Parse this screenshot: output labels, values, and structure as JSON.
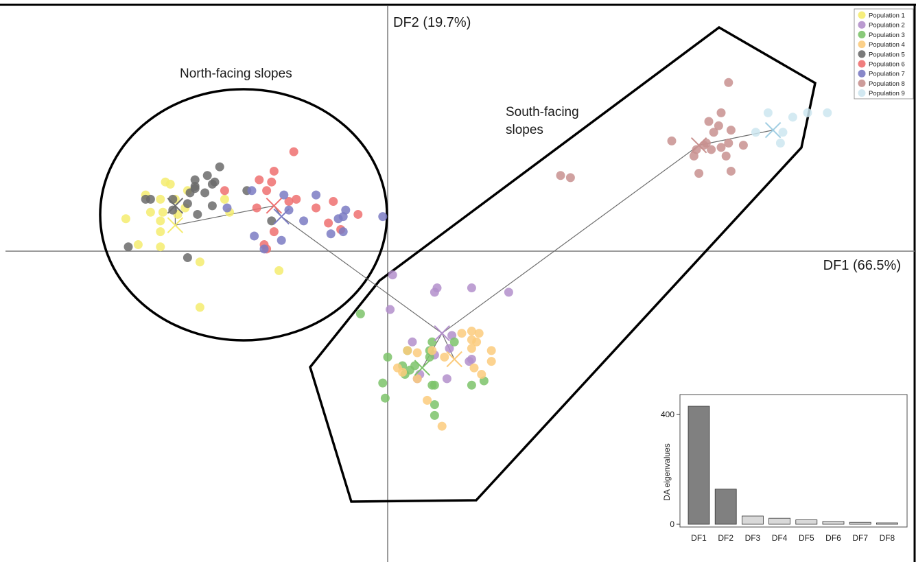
{
  "chart_data": [
    {
      "type": "scatter",
      "title": "",
      "xlabel": "DF1 (66.5%)",
      "ylabel": "DF2 (19.7%)",
      "xlim": [
        -7.5,
        10.5
      ],
      "ylim": [
        -5.6,
        4.7
      ],
      "grid": false,
      "legend_position": "top-right",
      "annotations": [
        "North-facing slopes",
        "South-facing slopes"
      ],
      "series": [
        {
          "name": "Population 1",
          "color": "#f5ec6e",
          "points": [
            [
              -4.5,
              1.6
            ],
            [
              -4.9,
              1.3
            ],
            [
              -4.6,
              1.2
            ],
            [
              -4.3,
              1.2
            ],
            [
              -4.1,
              1.0
            ],
            [
              -4.55,
              0.9
            ],
            [
              -4.25,
              0.85
            ],
            [
              -4.6,
              0.7
            ],
            [
              -5.3,
              0.75
            ],
            [
              -4.6,
              0.45
            ],
            [
              -4.05,
              1.4
            ],
            [
              -3.3,
              1.2
            ],
            [
              -3.2,
              0.9
            ],
            [
              -5.05,
              0.15
            ],
            [
              -4.6,
              0.1
            ],
            [
              -3.8,
              -0.25
            ],
            [
              -2.2,
              -0.45
            ],
            [
              -3.8,
              -1.3
            ],
            [
              -4.4,
              1.55
            ],
            [
              -4.8,
              0.9
            ]
          ],
          "centroid": [
            -4.3,
            0.6
          ]
        },
        {
          "name": "Population 2",
          "color": "#b38fcb",
          "points": [
            [
              0.1,
              -0.55
            ],
            [
              1.0,
              -0.85
            ],
            [
              0.95,
              -0.95
            ],
            [
              1.7,
              -0.85
            ],
            [
              2.45,
              -0.95
            ],
            [
              0.05,
              -1.35
            ],
            [
              0.5,
              -2.1
            ],
            [
              1.3,
              -1.95
            ],
            [
              1.25,
              -2.25
            ],
            [
              0.95,
              -2.4
            ],
            [
              1.7,
              -2.5
            ],
            [
              1.65,
              -2.55
            ],
            [
              0.65,
              -2.85
            ],
            [
              1.2,
              -2.95
            ],
            [
              0.6,
              -2.95
            ]
          ],
          "centroid": [
            1.1,
            -1.9
          ]
        },
        {
          "name": "Population 3",
          "color": "#7cc36a",
          "points": [
            [
              -0.55,
              -1.45
            ],
            [
              0.9,
              -2.1
            ],
            [
              1.35,
              -2.1
            ],
            [
              0.4,
              -2.3
            ],
            [
              0.85,
              -2.3
            ],
            [
              0.0,
              -2.45
            ],
            [
              0.85,
              -2.45
            ],
            [
              0.55,
              -2.65
            ],
            [
              0.3,
              -2.65
            ],
            [
              0.45,
              -2.75
            ],
            [
              0.35,
              -2.85
            ],
            [
              0.9,
              -3.1
            ],
            [
              1.7,
              -3.1
            ],
            [
              1.95,
              -3.0
            ],
            [
              -0.05,
              -3.4
            ],
            [
              0.95,
              -3.1
            ],
            [
              -0.1,
              -3.05
            ],
            [
              0.95,
              -3.55
            ],
            [
              0.95,
              -3.8
            ]
          ],
          "centroid": [
            0.7,
            -2.7
          ]
        },
        {
          "name": "Population 4",
          "color": "#fbcb7c",
          "points": [
            [
              1.5,
              -1.9
            ],
            [
              1.7,
              -1.85
            ],
            [
              1.85,
              -1.9
            ],
            [
              1.7,
              -2.05
            ],
            [
              1.8,
              -2.1
            ],
            [
              1.7,
              -2.25
            ],
            [
              0.4,
              -2.3
            ],
            [
              0.6,
              -2.35
            ],
            [
              0.9,
              -2.3
            ],
            [
              1.15,
              -2.45
            ],
            [
              2.1,
              -2.3
            ],
            [
              2.1,
              -2.55
            ],
            [
              1.75,
              -2.7
            ],
            [
              0.2,
              -2.7
            ],
            [
              0.3,
              -2.8
            ],
            [
              1.9,
              -2.85
            ],
            [
              0.6,
              -2.95
            ],
            [
              0.8,
              -3.45
            ],
            [
              1.1,
              -4.05
            ]
          ],
          "centroid": [
            1.35,
            -2.5
          ]
        },
        {
          "name": "Population 5",
          "color": "#6b6b6b",
          "points": [
            [
              -3.4,
              1.95
            ],
            [
              -3.65,
              1.75
            ],
            [
              -3.5,
              1.6
            ],
            [
              -3.9,
              1.5
            ],
            [
              -4.0,
              1.35
            ],
            [
              -3.7,
              1.35
            ],
            [
              -3.9,
              1.45
            ],
            [
              -3.55,
              1.55
            ],
            [
              -2.85,
              1.4
            ],
            [
              -4.35,
              1.2
            ],
            [
              -4.05,
              1.1
            ],
            [
              -4.8,
              1.2
            ],
            [
              -4.9,
              1.2
            ],
            [
              -4.35,
              0.95
            ],
            [
              -3.55,
              1.05
            ],
            [
              -3.85,
              0.85
            ],
            [
              -2.35,
              0.7
            ],
            [
              -5.25,
              0.1
            ],
            [
              -4.05,
              -0.15
            ],
            [
              -3.9,
              1.65
            ]
          ],
          "centroid": [
            -4.3,
            1.05
          ]
        },
        {
          "name": "Population 6",
          "color": "#ee7070",
          "points": [
            [
              -1.9,
              2.3
            ],
            [
              -2.3,
              1.85
            ],
            [
              -2.6,
              1.65
            ],
            [
              -2.35,
              1.6
            ],
            [
              -2.45,
              1.4
            ],
            [
              -3.3,
              1.4
            ],
            [
              -2.0,
              1.15
            ],
            [
              -1.1,
              1.15
            ],
            [
              -1.85,
              1.2
            ],
            [
              -2.65,
              1.0
            ],
            [
              -1.45,
              1.0
            ],
            [
              -1.2,
              0.65
            ],
            [
              -0.6,
              0.85
            ],
            [
              -0.95,
              0.5
            ],
            [
              -2.3,
              0.45
            ],
            [
              -2.5,
              0.15
            ],
            [
              -2.45,
              0.05
            ]
          ],
          "centroid": [
            -2.3,
            1.05
          ]
        },
        {
          "name": "Population 7",
          "color": "#7b7bc3",
          "points": [
            [
              -2.75,
              1.4
            ],
            [
              -1.45,
              1.3
            ],
            [
              -2.1,
              1.3
            ],
            [
              -3.25,
              1.0
            ],
            [
              -2.0,
              0.95
            ],
            [
              -0.85,
              0.95
            ],
            [
              -1.0,
              0.75
            ],
            [
              -0.9,
              0.8
            ],
            [
              -0.1,
              0.8
            ],
            [
              -1.7,
              0.7
            ],
            [
              -2.7,
              0.35
            ],
            [
              -1.15,
              0.4
            ],
            [
              -0.9,
              0.45
            ],
            [
              -2.15,
              0.25
            ],
            [
              -2.5,
              0.05
            ]
          ],
          "centroid": [
            -2.15,
            0.8
          ]
        },
        {
          "name": "Population 8",
          "color": "#c8918f",
          "points": [
            [
              6.9,
              3.9
            ],
            [
              6.75,
              3.2
            ],
            [
              6.5,
              3.0
            ],
            [
              6.7,
              2.9
            ],
            [
              6.6,
              2.75
            ],
            [
              6.95,
              2.8
            ],
            [
              5.75,
              2.55
            ],
            [
              6.45,
              2.5
            ],
            [
              6.9,
              2.5
            ],
            [
              6.25,
              2.35
            ],
            [
              6.75,
              2.4
            ],
            [
              6.55,
              2.35
            ],
            [
              7.2,
              2.45
            ],
            [
              6.2,
              2.2
            ],
            [
              6.85,
              2.2
            ],
            [
              6.3,
              1.8
            ],
            [
              6.95,
              1.85
            ],
            [
              3.5,
              1.75
            ],
            [
              3.7,
              1.7
            ],
            [
              6.4,
              2.45
            ]
          ],
          "centroid": [
            6.3,
            2.45
          ]
        },
        {
          "name": "Population 9",
          "color": "#cde6f0",
          "points": [
            [
              7.7,
              3.2
            ],
            [
              8.2,
              3.1
            ],
            [
              8.9,
              3.2
            ],
            [
              8.5,
              3.2
            ],
            [
              7.95,
              2.5
            ],
            [
              7.45,
              2.75
            ],
            [
              8.0,
              2.75
            ]
          ],
          "centroid": [
            7.8,
            2.8
          ]
        }
      ],
      "links": [
        [
          "Population 1",
          "Population 5"
        ],
        [
          "Population 1",
          "Population 6"
        ],
        [
          "Population 6",
          "Population 7"
        ],
        [
          "Population 7",
          "Population 2"
        ],
        [
          "Population 2",
          "Population 3"
        ],
        [
          "Population 2",
          "Population 4"
        ],
        [
          "Population 2",
          "Population 8"
        ],
        [
          "Population 8",
          "Population 9"
        ]
      ]
    },
    {
      "type": "bar",
      "title": "",
      "xlabel": "",
      "ylabel": "DA eigenvalues",
      "categories": [
        "DF1",
        "DF2",
        "DF3",
        "DF4",
        "DF5",
        "DF6",
        "DF7",
        "DF8"
      ],
      "values": [
        430,
        128,
        30,
        22,
        16,
        10,
        7,
        5
      ],
      "ylim": [
        0,
        480
      ],
      "yticks": [
        0,
        400
      ],
      "retained_bars": 2,
      "colors": {
        "retained": "#808080",
        "other": "#d9d9d9"
      }
    }
  ]
}
